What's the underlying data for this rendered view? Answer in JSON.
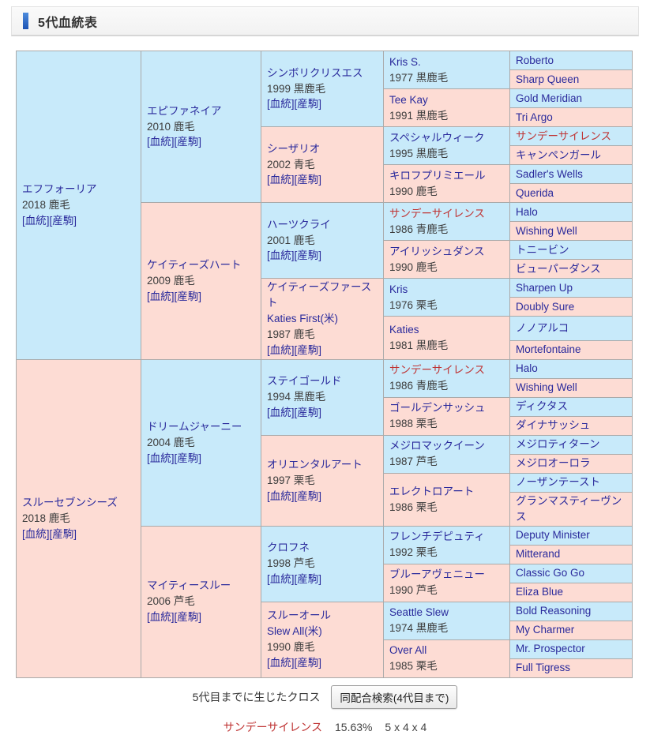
{
  "header": {
    "title": "5代血統表"
  },
  "pedigree": {
    "bloodline_label": "[血統]",
    "offspring_label": "[産駒]",
    "generations": [
      [
        {
          "name": "エフフォーリア",
          "info": "2018 鹿毛",
          "links": true,
          "sex": "m"
        },
        {
          "name": "スルーセブンシーズ",
          "info": "2018 鹿毛",
          "links": true,
          "sex": "f"
        }
      ],
      [
        {
          "name": "エピファネイア",
          "info": "2010 鹿毛",
          "links": true,
          "sex": "m"
        },
        {
          "name": "ケイティーズハート",
          "info": "2009 鹿毛",
          "links": true,
          "sex": "f"
        },
        {
          "name": "ドリームジャーニー",
          "info": "2004 鹿毛",
          "links": true,
          "sex": "m"
        },
        {
          "name": "マイティースルー",
          "info": "2006 芦毛",
          "links": true,
          "sex": "f"
        }
      ],
      [
        {
          "name": "シンボリクリスエス",
          "info": "1999 黒鹿毛",
          "links": true,
          "sex": "m"
        },
        {
          "name": "シーザリオ",
          "info": "2002 青毛",
          "links": true,
          "sex": "f"
        },
        {
          "name": "ハーツクライ",
          "info": "2001 鹿毛",
          "links": true,
          "sex": "m"
        },
        {
          "name": "ケイティーズファースト",
          "en": "Katies First(米)",
          "info": "1987 鹿毛",
          "links": true,
          "sex": "f"
        },
        {
          "name": "ステイゴールド",
          "info": "1994 黒鹿毛",
          "links": true,
          "sex": "m"
        },
        {
          "name": "オリエンタルアート",
          "info": "1997 栗毛",
          "links": true,
          "sex": "f"
        },
        {
          "name": "クロフネ",
          "info": "1998 芦毛",
          "links": true,
          "sex": "m"
        },
        {
          "name": "スルーオール",
          "en": "Slew All(米)",
          "info": "1990 鹿毛",
          "links": true,
          "sex": "f"
        }
      ],
      [
        {
          "name": "Kris S.",
          "info": "1977 黒鹿毛",
          "sex": "m"
        },
        {
          "name": "Tee Kay",
          "info": "1991 黒鹿毛",
          "sex": "f"
        },
        {
          "name": "スペシャルウィーク",
          "info": "1995 黒鹿毛",
          "sex": "m"
        },
        {
          "name": "キロフプリミエール",
          "info": "1990 鹿毛",
          "sex": "f"
        },
        {
          "name": "サンデーサイレンス",
          "info": "1986 青鹿毛",
          "sex": "m",
          "red": true
        },
        {
          "name": "アイリッシュダンス",
          "info": "1990 鹿毛",
          "sex": "f"
        },
        {
          "name": "Kris",
          "info": "1976 栗毛",
          "sex": "m"
        },
        {
          "name": "Katies",
          "info": "1981 黒鹿毛",
          "sex": "f"
        },
        {
          "name": "サンデーサイレンス",
          "info": "1986 青鹿毛",
          "sex": "m",
          "red": true
        },
        {
          "name": "ゴールデンサッシュ",
          "info": "1988 栗毛",
          "sex": "f"
        },
        {
          "name": "メジロマックイーン",
          "info": "1987 芦毛",
          "sex": "m"
        },
        {
          "name": "エレクトロアート",
          "info": "1986 栗毛",
          "sex": "f"
        },
        {
          "name": "フレンチデピュティ",
          "info": "1992 栗毛",
          "sex": "m"
        },
        {
          "name": "ブルーアヴェニュー",
          "info": "1990 芦毛",
          "sex": "f"
        },
        {
          "name": "Seattle Slew",
          "info": "1974 黒鹿毛",
          "sex": "m"
        },
        {
          "name": "Over All",
          "info": "1985 栗毛",
          "sex": "f"
        }
      ],
      [
        {
          "name": "Roberto",
          "sex": "m"
        },
        {
          "name": "Sharp Queen",
          "sex": "f"
        },
        {
          "name": "Gold Meridian",
          "sex": "m"
        },
        {
          "name": "Tri Argo",
          "sex": "f"
        },
        {
          "name": "サンデーサイレンス",
          "sex": "m",
          "red": true
        },
        {
          "name": "キャンペンガール",
          "sex": "f"
        },
        {
          "name": "Sadler's Wells",
          "sex": "m"
        },
        {
          "name": "Querida",
          "sex": "f"
        },
        {
          "name": "Halo",
          "sex": "m"
        },
        {
          "name": "Wishing Well",
          "sex": "f"
        },
        {
          "name": "トニービン",
          "sex": "m"
        },
        {
          "name": "ビューパーダンス",
          "sex": "f"
        },
        {
          "name": "Sharpen Up",
          "sex": "m"
        },
        {
          "name": "Doubly Sure",
          "sex": "f"
        },
        {
          "name": "ノノアルコ",
          "sex": "m"
        },
        {
          "name": "Mortefontaine",
          "sex": "f"
        },
        {
          "name": "Halo",
          "sex": "m"
        },
        {
          "name": "Wishing Well",
          "sex": "f"
        },
        {
          "name": "ディクタス",
          "sex": "m"
        },
        {
          "name": "ダイナサッシュ",
          "sex": "f"
        },
        {
          "name": "メジロティターン",
          "sex": "m"
        },
        {
          "name": "メジロオーロラ",
          "sex": "f"
        },
        {
          "name": "ノーザンテースト",
          "sex": "m"
        },
        {
          "name": "グランマスティーヴンス",
          "sex": "f"
        },
        {
          "name": "Deputy Minister",
          "sex": "m"
        },
        {
          "name": "Mitterand",
          "sex": "f"
        },
        {
          "name": "Classic Go Go",
          "sex": "m"
        },
        {
          "name": "Eliza Blue",
          "sex": "f"
        },
        {
          "name": "Bold Reasoning",
          "sex": "m"
        },
        {
          "name": "My Charmer",
          "sex": "f"
        },
        {
          "name": "Mr. Prospector",
          "sex": "m"
        },
        {
          "name": "Full Tigress",
          "sex": "f"
        }
      ]
    ]
  },
  "footer": {
    "cross_label": "5代目までに生じたクロス",
    "same_mating_button": "同配合検索(4代目まで)",
    "crosses": [
      {
        "name": "サンデーサイレンス",
        "percent": "15.63%",
        "pattern": "5 x 4 x 4"
      }
    ]
  },
  "colors": {
    "male_bg": "#c8eafa",
    "female_bg": "#fddcd4",
    "link": "#2a2a9c",
    "highlight": "#bf3434",
    "accent": "#2a64c8"
  }
}
